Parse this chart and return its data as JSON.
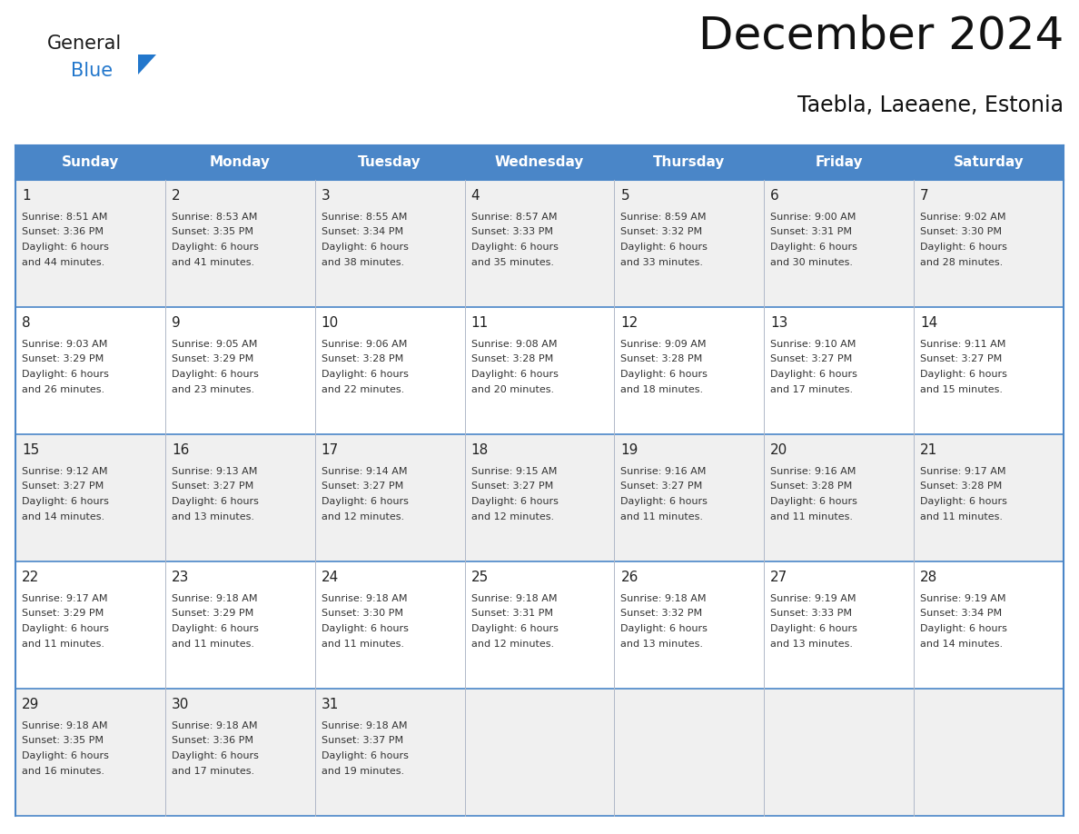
{
  "title": "December 2024",
  "subtitle": "Taebla, Laeaene, Estonia",
  "days_of_week": [
    "Sunday",
    "Monday",
    "Tuesday",
    "Wednesday",
    "Thursday",
    "Friday",
    "Saturday"
  ],
  "header_bg": "#4a86c8",
  "header_text": "#ffffff",
  "row_bg_odd": "#f0f0f0",
  "row_bg_even": "#ffffff",
  "cell_text_color": "#333333",
  "day_num_color": "#222222",
  "border_color": "#4a86c8",
  "logo_black": "#1a1a1a",
  "logo_blue": "#2277cc",
  "title_color": "#111111",
  "calendar_data": [
    [
      {
        "day": 1,
        "sunrise": "8:51 AM",
        "sunset": "3:36 PM",
        "daylight": "6 hours and 44 minutes."
      },
      {
        "day": 2,
        "sunrise": "8:53 AM",
        "sunset": "3:35 PM",
        "daylight": "6 hours and 41 minutes."
      },
      {
        "day": 3,
        "sunrise": "8:55 AM",
        "sunset": "3:34 PM",
        "daylight": "6 hours and 38 minutes."
      },
      {
        "day": 4,
        "sunrise": "8:57 AM",
        "sunset": "3:33 PM",
        "daylight": "6 hours and 35 minutes."
      },
      {
        "day": 5,
        "sunrise": "8:59 AM",
        "sunset": "3:32 PM",
        "daylight": "6 hours and 33 minutes."
      },
      {
        "day": 6,
        "sunrise": "9:00 AM",
        "sunset": "3:31 PM",
        "daylight": "6 hours and 30 minutes."
      },
      {
        "day": 7,
        "sunrise": "9:02 AM",
        "sunset": "3:30 PM",
        "daylight": "6 hours and 28 minutes."
      }
    ],
    [
      {
        "day": 8,
        "sunrise": "9:03 AM",
        "sunset": "3:29 PM",
        "daylight": "6 hours and 26 minutes."
      },
      {
        "day": 9,
        "sunrise": "9:05 AM",
        "sunset": "3:29 PM",
        "daylight": "6 hours and 23 minutes."
      },
      {
        "day": 10,
        "sunrise": "9:06 AM",
        "sunset": "3:28 PM",
        "daylight": "6 hours and 22 minutes."
      },
      {
        "day": 11,
        "sunrise": "9:08 AM",
        "sunset": "3:28 PM",
        "daylight": "6 hours and 20 minutes."
      },
      {
        "day": 12,
        "sunrise": "9:09 AM",
        "sunset": "3:28 PM",
        "daylight": "6 hours and 18 minutes."
      },
      {
        "day": 13,
        "sunrise": "9:10 AM",
        "sunset": "3:27 PM",
        "daylight": "6 hours and 17 minutes."
      },
      {
        "day": 14,
        "sunrise": "9:11 AM",
        "sunset": "3:27 PM",
        "daylight": "6 hours and 15 minutes."
      }
    ],
    [
      {
        "day": 15,
        "sunrise": "9:12 AM",
        "sunset": "3:27 PM",
        "daylight": "6 hours and 14 minutes."
      },
      {
        "day": 16,
        "sunrise": "9:13 AM",
        "sunset": "3:27 PM",
        "daylight": "6 hours and 13 minutes."
      },
      {
        "day": 17,
        "sunrise": "9:14 AM",
        "sunset": "3:27 PM",
        "daylight": "6 hours and 12 minutes."
      },
      {
        "day": 18,
        "sunrise": "9:15 AM",
        "sunset": "3:27 PM",
        "daylight": "6 hours and 12 minutes."
      },
      {
        "day": 19,
        "sunrise": "9:16 AM",
        "sunset": "3:27 PM",
        "daylight": "6 hours and 11 minutes."
      },
      {
        "day": 20,
        "sunrise": "9:16 AM",
        "sunset": "3:28 PM",
        "daylight": "6 hours and 11 minutes."
      },
      {
        "day": 21,
        "sunrise": "9:17 AM",
        "sunset": "3:28 PM",
        "daylight": "6 hours and 11 minutes."
      }
    ],
    [
      {
        "day": 22,
        "sunrise": "9:17 AM",
        "sunset": "3:29 PM",
        "daylight": "6 hours and 11 minutes."
      },
      {
        "day": 23,
        "sunrise": "9:18 AM",
        "sunset": "3:29 PM",
        "daylight": "6 hours and 11 minutes."
      },
      {
        "day": 24,
        "sunrise": "9:18 AM",
        "sunset": "3:30 PM",
        "daylight": "6 hours and 11 minutes."
      },
      {
        "day": 25,
        "sunrise": "9:18 AM",
        "sunset": "3:31 PM",
        "daylight": "6 hours and 12 minutes."
      },
      {
        "day": 26,
        "sunrise": "9:18 AM",
        "sunset": "3:32 PM",
        "daylight": "6 hours and 13 minutes."
      },
      {
        "day": 27,
        "sunrise": "9:19 AM",
        "sunset": "3:33 PM",
        "daylight": "6 hours and 13 minutes."
      },
      {
        "day": 28,
        "sunrise": "9:19 AM",
        "sunset": "3:34 PM",
        "daylight": "6 hours and 14 minutes."
      }
    ],
    [
      {
        "day": 29,
        "sunrise": "9:18 AM",
        "sunset": "3:35 PM",
        "daylight": "6 hours and 16 minutes."
      },
      {
        "day": 30,
        "sunrise": "9:18 AM",
        "sunset": "3:36 PM",
        "daylight": "6 hours and 17 minutes."
      },
      {
        "day": 31,
        "sunrise": "9:18 AM",
        "sunset": "3:37 PM",
        "daylight": "6 hours and 19 minutes."
      },
      null,
      null,
      null,
      null
    ]
  ]
}
